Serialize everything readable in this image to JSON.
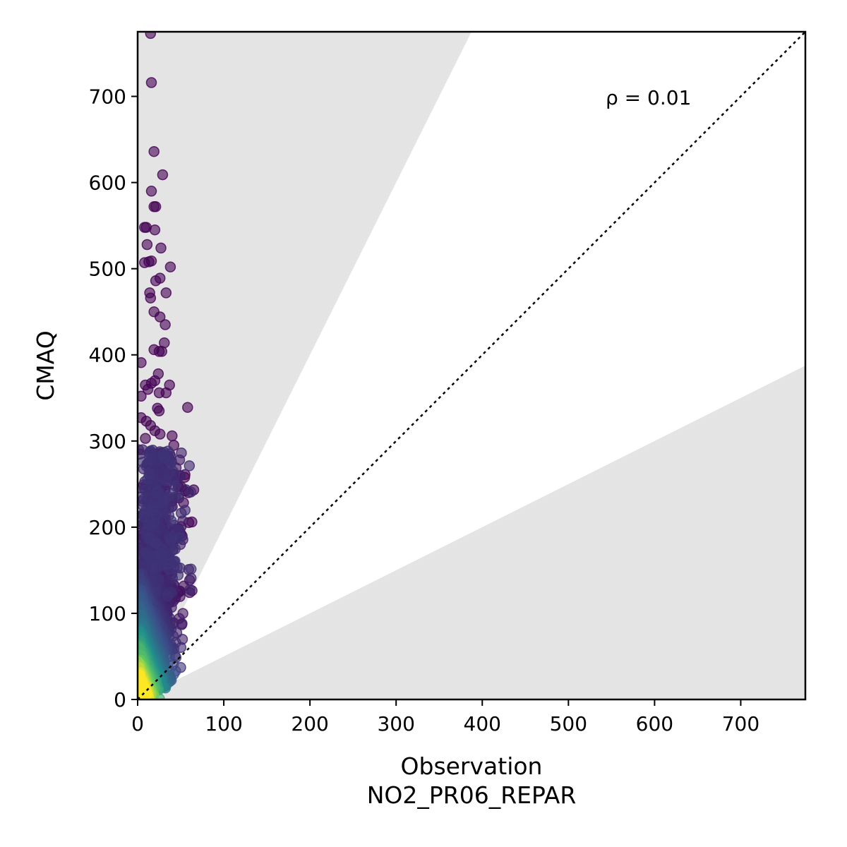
{
  "chart_data": {
    "type": "scatter",
    "xlabel": "Observation",
    "xlabel2": "NO2_PR06_REPAR",
    "ylabel": "CMAQ",
    "annotation": "ρ = 0.01",
    "xlim": [
      0,
      775
    ],
    "ylim": [
      0,
      775
    ],
    "x_ticks": [
      0,
      100,
      200,
      300,
      400,
      500,
      600,
      700
    ],
    "y_ticks": [
      0,
      100,
      200,
      300,
      400,
      500,
      600,
      700
    ],
    "reference_line": "1:1 (dotted)",
    "shaded_region": "outside factor-of-2 band (gray)",
    "colormap": "viridis (point density)",
    "grid": false,
    "colors": {
      "shade": "#e4e4e4",
      "refline": "#000000",
      "low_density": "#440154",
      "high_density": "#fde725"
    },
    "outliers": [
      [
        15,
        773
      ],
      [
        16,
        716
      ],
      [
        19,
        636
      ],
      [
        29,
        609
      ],
      [
        16,
        590
      ],
      [
        19,
        572
      ],
      [
        21,
        572
      ],
      [
        8,
        548
      ],
      [
        10,
        548
      ],
      [
        20,
        545
      ],
      [
        27,
        524
      ],
      [
        11,
        528
      ],
      [
        8,
        507
      ],
      [
        13,
        508
      ],
      [
        16,
        509
      ],
      [
        38,
        502
      ],
      [
        21,
        486
      ],
      [
        26,
        489
      ],
      [
        14,
        472
      ],
      [
        33,
        472
      ],
      [
        15,
        466
      ],
      [
        19,
        450
      ],
      [
        26,
        444
      ],
      [
        32,
        435
      ],
      [
        31,
        414
      ],
      [
        19,
        406
      ],
      [
        25,
        404
      ],
      [
        28,
        404
      ],
      [
        4,
        391
      ],
      [
        24,
        378
      ],
      [
        20,
        370
      ],
      [
        16,
        367
      ],
      [
        37,
        365
      ],
      [
        9,
        365
      ],
      [
        12,
        360
      ],
      [
        25,
        356
      ],
      [
        33,
        356
      ],
      [
        4,
        352
      ],
      [
        23,
        338
      ],
      [
        25,
        335
      ],
      [
        58,
        339
      ],
      [
        4,
        327
      ],
      [
        10,
        323
      ],
      [
        15,
        318
      ],
      [
        20,
        312
      ],
      [
        26,
        308
      ],
      [
        40,
        306
      ],
      [
        9,
        303
      ],
      [
        42,
        295
      ],
      [
        55,
        261
      ],
      [
        59,
        240
      ],
      [
        63,
        206
      ],
      [
        55,
        242
      ],
      [
        40,
        230
      ],
      [
        35,
        281
      ],
      [
        47,
        247
      ]
    ]
  }
}
